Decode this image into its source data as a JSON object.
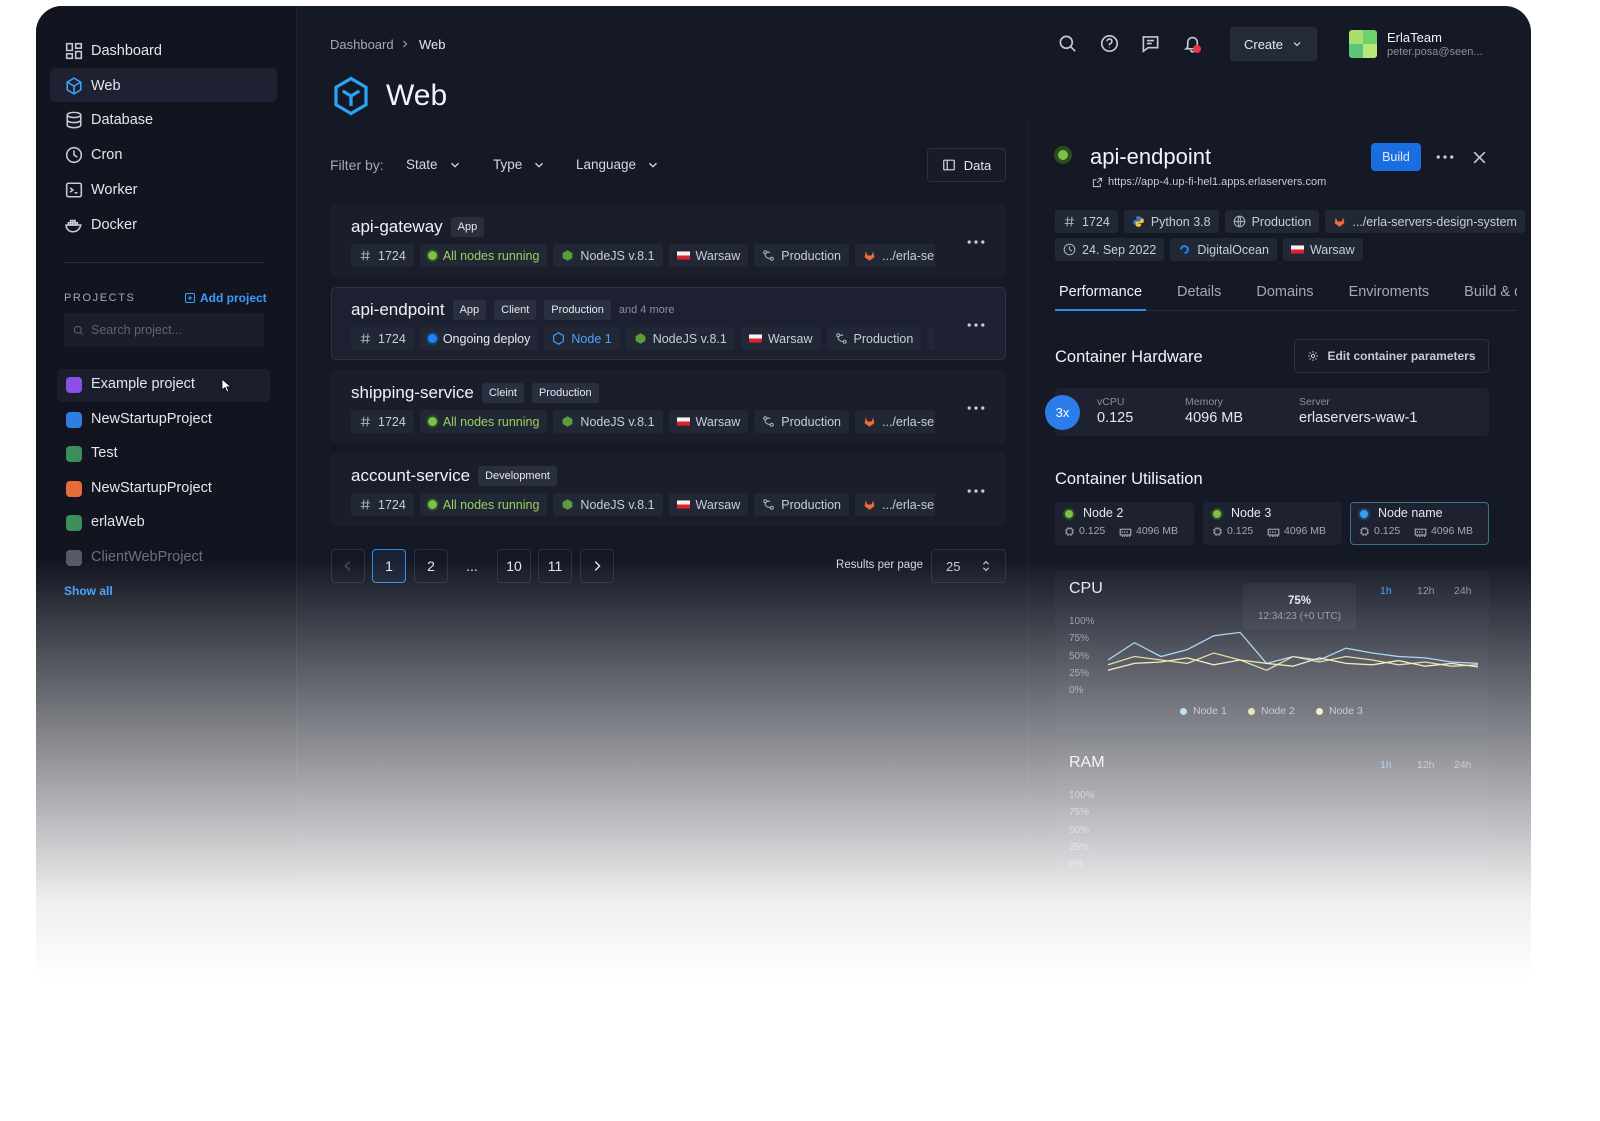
{
  "sidebar": {
    "nav": [
      "Dashboard",
      "Web",
      "Database",
      "Cron",
      "Worker",
      "Docker"
    ],
    "projects_heading": "PROJECTS",
    "add_project": "Add project",
    "search_placeholder": "Search project...",
    "projects": [
      "Example project",
      "NewStartupProject",
      "Test",
      "NewStartupProject",
      "erlaWeb",
      "ClientWebProject"
    ],
    "show_all": "Show all"
  },
  "header": {
    "breadcrumb": [
      "Dashboard",
      "Web"
    ],
    "create": "Create",
    "user": {
      "name": "ErlaTeam",
      "email": "peter.posa@seen..."
    }
  },
  "page_title": "Web",
  "filters": {
    "label": "Filter by:",
    "options": [
      "State",
      "Type",
      "Language"
    ],
    "data_button": "Data"
  },
  "services": [
    {
      "name": "api-gateway",
      "tags": [
        "App"
      ],
      "id": "1724",
      "status": "All nodes running",
      "runtime": "NodeJS v.8.1",
      "location": "Warsaw",
      "environment": "Production",
      "repo": ".../erla-ser"
    },
    {
      "name": "api-endpoint",
      "tags": [
        "App",
        "Client",
        "Production"
      ],
      "more": "and 4 more",
      "id": "1724",
      "status": "Ongoing deploy",
      "node": "Node 1",
      "runtime": "NodeJS v.8.1",
      "location": "Warsaw",
      "environment": "Production"
    },
    {
      "name": "shipping-service",
      "tags": [
        "Cleint",
        "Production"
      ],
      "id": "1724",
      "status": "All nodes running",
      "runtime": "NodeJS v.8.1",
      "location": "Warsaw",
      "environment": "Production",
      "repo": ".../erla-ser"
    },
    {
      "name": "account-service",
      "tags": [
        "Development"
      ],
      "id": "1724",
      "status": "All nodes running",
      "runtime": "NodeJS v.8.1",
      "location": "Warsaw",
      "environment": "Production",
      "repo": ".../erla-ser"
    }
  ],
  "pagination": {
    "pages": [
      "1",
      "2",
      "...",
      "10",
      "11"
    ],
    "results_label": "Results per page",
    "results_value": "25"
  },
  "detail": {
    "title": "api-endpoint",
    "build": "Build",
    "url": "https://app-4.up-fi-hel1.apps.erlaservers.com",
    "id": "1724",
    "runtime": "Python 3.8",
    "environment": "Production",
    "repo": ".../erla-servers-design-system",
    "date": "24. Sep 2022",
    "provider": "DigitalOcean",
    "location": "Warsaw",
    "tabs": [
      "Performance",
      "Details",
      "Domains",
      "Enviroments",
      "Build & d"
    ],
    "hardware": {
      "heading": "Container Hardware",
      "edit": "Edit container parameters",
      "replicas": "3x",
      "fields": [
        {
          "label": "vCPU",
          "value": "0.125"
        },
        {
          "label": "Memory",
          "value": "4096 MB"
        },
        {
          "label": "Server",
          "value": "erlaservers-waw-1"
        }
      ]
    },
    "utilisation": {
      "heading": "Container Utilisation",
      "nodes": [
        {
          "name": "Node 2",
          "cpu": "0.125",
          "memory": "4096 MB"
        },
        {
          "name": "Node 3",
          "cpu": "0.125",
          "memory": "4096 MB"
        },
        {
          "name": "Node name",
          "cpu": "0.125",
          "memory": "4096 MB"
        }
      ]
    }
  },
  "cpu_chart": {
    "type": "line",
    "title": "CPU",
    "ranges": [
      "1h",
      "12h",
      "24h"
    ],
    "tooltip": {
      "value": "75%",
      "time": "12:34:23 (+0 UTC)"
    },
    "ylim": [
      0,
      100
    ],
    "yticks": [
      {
        "value": 100,
        "label": "100%"
      },
      {
        "value": 75,
        "label": "75%"
      },
      {
        "value": 50,
        "label": "50%"
      },
      {
        "value": 25,
        "label": "25%"
      },
      {
        "value": 0,
        "label": "0%"
      }
    ],
    "series": [
      {
        "name": "Node 1",
        "color": "#8fc8f2",
        "values": [
          45,
          70,
          50,
          60,
          80,
          85,
          40,
          50,
          45,
          62,
          55,
          50,
          48,
          42,
          40
        ]
      },
      {
        "name": "Node 2",
        "color": "#d8cf86",
        "values": [
          38,
          50,
          45,
          40,
          55,
          45,
          30,
          50,
          42,
          50,
          45,
          38,
          42,
          36,
          38
        ]
      },
      {
        "name": "Node 3",
        "color": "#ece4ad",
        "values": [
          30,
          40,
          42,
          48,
          38,
          45,
          40,
          36,
          48,
          40,
          38,
          44,
          36,
          40,
          35
        ]
      }
    ]
  },
  "ram_chart": {
    "title": "RAM",
    "ranges": [
      "1h",
      "12h",
      "24h"
    ],
    "ylim": [
      0,
      100
    ],
    "yticks": [
      {
        "value": 100,
        "label": "100%"
      },
      {
        "value": 75,
        "label": "75%"
      },
      {
        "value": 50,
        "label": "50%"
      },
      {
        "value": 25,
        "label": "25%"
      },
      {
        "value": 0,
        "label": "0%"
      }
    ]
  }
}
